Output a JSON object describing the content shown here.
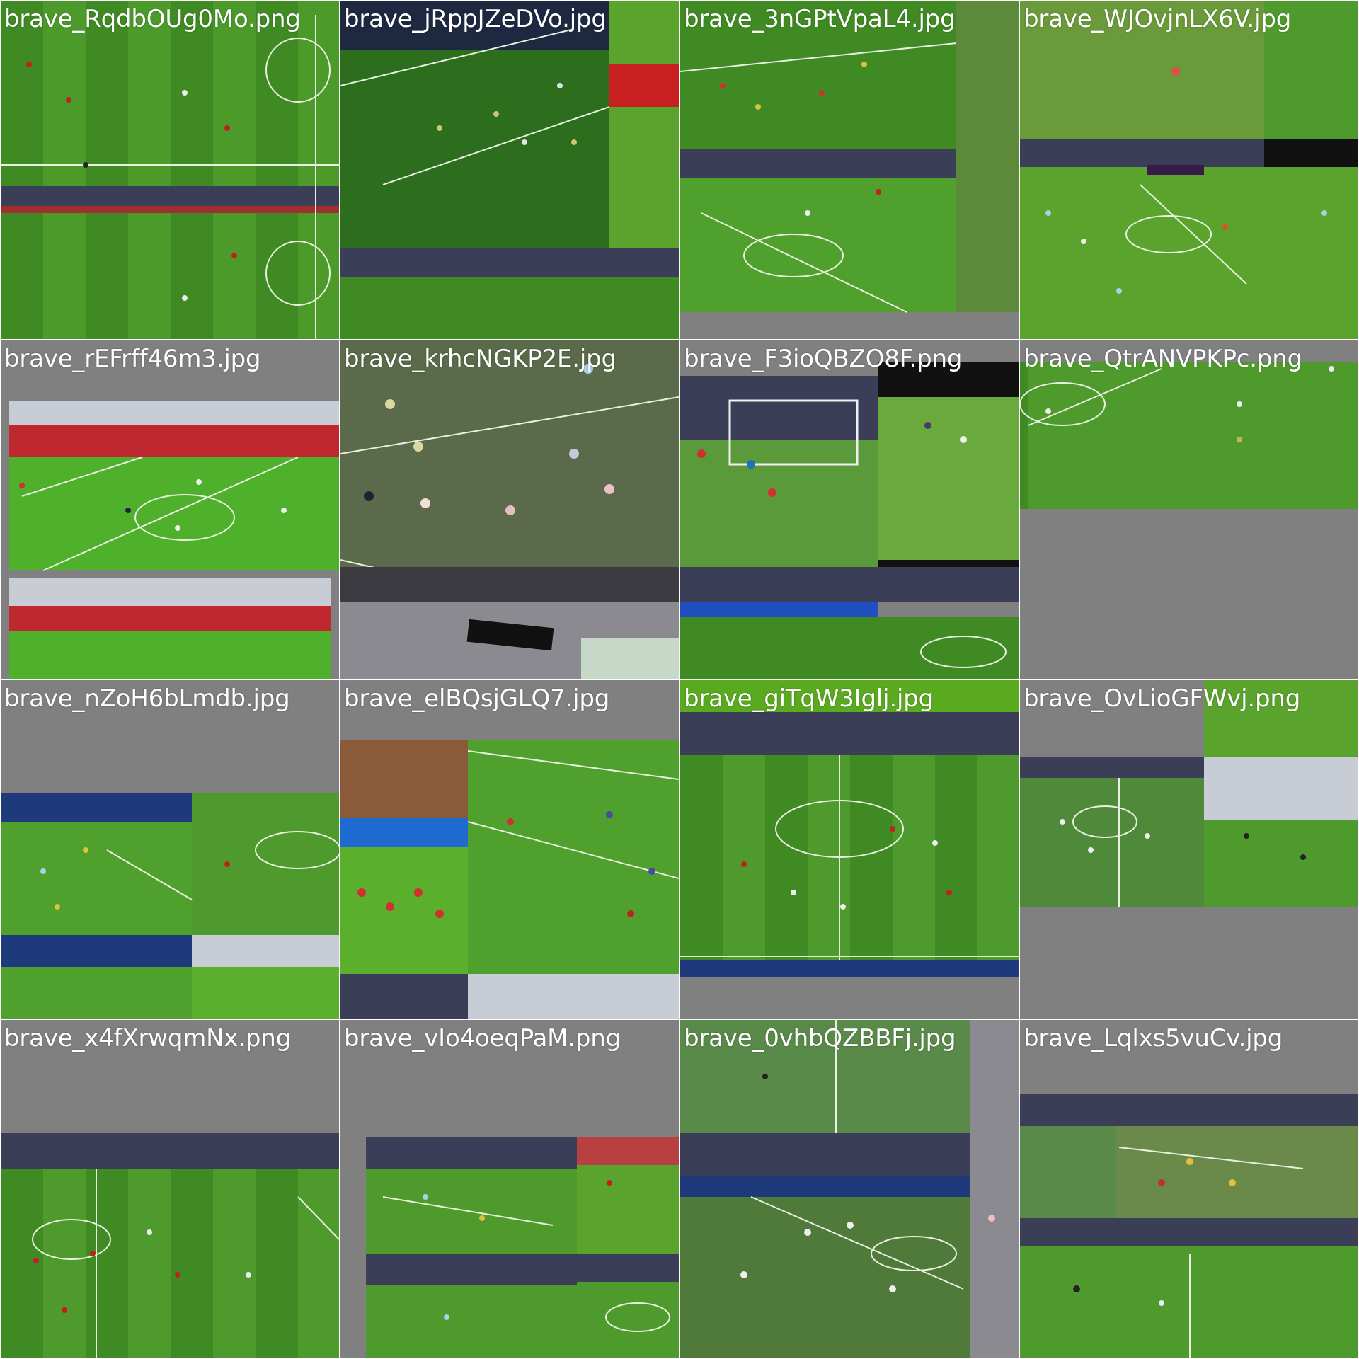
{
  "tiles": [
    {
      "filename": "brave_RqdbOUg0Mo.png"
    },
    {
      "filename": "brave_jRppJZeDVo.jpg"
    },
    {
      "filename": "brave_3nGPtVpaL4.jpg"
    },
    {
      "filename": "brave_WJOvjnLX6V.jpg"
    },
    {
      "filename": "brave_rEFrff46m3.jpg"
    },
    {
      "filename": "brave_krhcNGKP2E.jpg"
    },
    {
      "filename": "brave_F3ioQBZO8F.png"
    },
    {
      "filename": "brave_QtrANVPKPc.png"
    },
    {
      "filename": "brave_nZoH6bLmdb.jpg"
    },
    {
      "filename": "brave_elBQsjGLQ7.jpg"
    },
    {
      "filename": "brave_giTqW3Iglj.jpg"
    },
    {
      "filename": "brave_OvLioGFWvj.png"
    },
    {
      "filename": "brave_x4fXrwqmNx.png"
    },
    {
      "filename": "brave_vIo4oeqPaM.png"
    },
    {
      "filename": "brave_0vhbQZBBFj.jpg"
    },
    {
      "filename": "brave_Lqlxs5vuCv.jpg"
    }
  ],
  "colors": {
    "pad_gray": "#808080",
    "pitch_light": "#4f9a2c",
    "pitch_dark": "#3f8622",
    "crowd": "#3a3f57",
    "label": "#ffffff"
  }
}
